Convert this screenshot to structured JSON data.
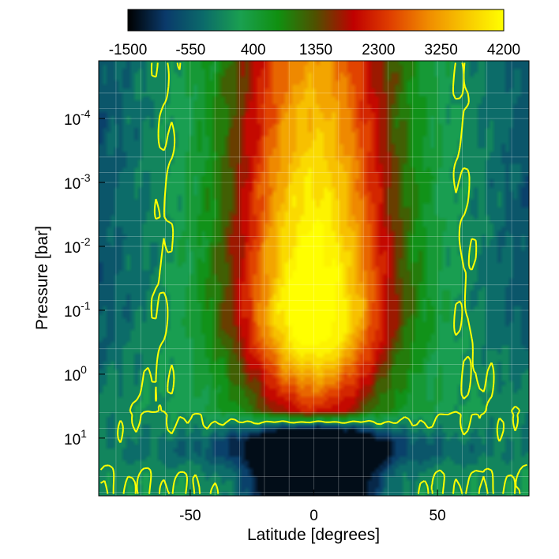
{
  "chart_data": {
    "type": "heatmap",
    "xlabel": "Latitude [degrees]",
    "ylabel": "Pressure [bar]",
    "xlim": [
      -87,
      87
    ],
    "ylim": [
      80,
      1.25e-05
    ],
    "y_scale": "log",
    "y_inverted": true,
    "grid": true,
    "x_ticks": [
      {
        "value": -50,
        "label": "-50"
      },
      {
        "value": 0,
        "label": "0"
      },
      {
        "value": 50,
        "label": "50"
      }
    ],
    "y_ticks": [
      {
        "value": 0.0001,
        "base": "10",
        "exp": "-4"
      },
      {
        "value": 0.001,
        "base": "10",
        "exp": "-3"
      },
      {
        "value": 0.01,
        "base": "10",
        "exp": "-2"
      },
      {
        "value": 0.1,
        "base": "10",
        "exp": "-1"
      },
      {
        "value": 1,
        "base": "10",
        "exp": "0"
      },
      {
        "value": 10,
        "base": "10",
        "exp": "1"
      }
    ],
    "colorbar": {
      "range": [
        -1500,
        4200
      ],
      "tick_labels": [
        "-1500",
        "-550",
        "400",
        "1350",
        "2300",
        "3250",
        "4200"
      ],
      "tick_values": [
        -1500,
        -550,
        400,
        1350,
        2300,
        3250,
        4200
      ],
      "colors": [
        "#000000",
        "#0a3a6b",
        "#0b6a6a",
        "#1aa050",
        "#109010",
        "#505000",
        "#c00000",
        "#e04000",
        "#f08c00",
        "#f8c800",
        "#ffff00"
      ]
    },
    "zero_contour_color": "#ffff00",
    "field_description_values": {
      "equatorial_jet_peak": 4200,
      "equatorial_jet_peak_pressure": 0.1,
      "jet_lower_edge_pressure": 4,
      "deep_retrograde_min": -800,
      "deep_retrograde_pressure": 15,
      "polar_high_altitude_min": -700
    }
  }
}
